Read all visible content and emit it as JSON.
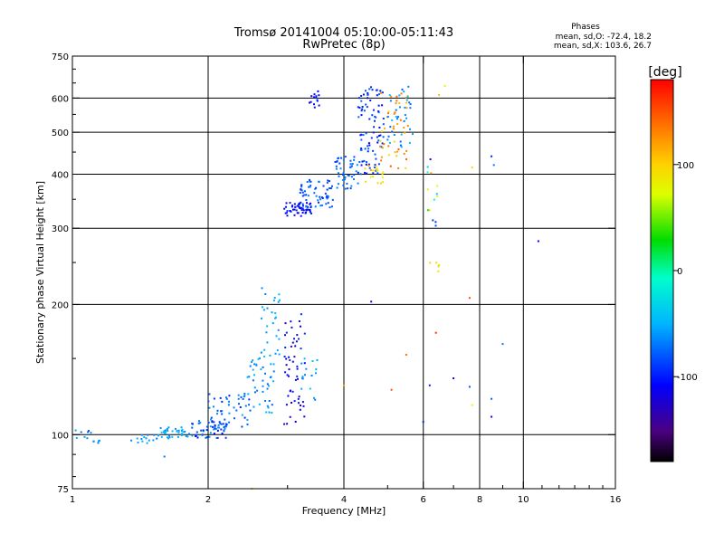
{
  "chart_data": {
    "type": "scatter",
    "title": "Tromsø 20141004 05:10:00-05:11:43",
    "subtitle": "RwPretec (8p)",
    "xlabel": "Frequency [MHz]",
    "ylabel": "Stationary phase Virtual Height [km]",
    "x_scale": "log",
    "y_scale": "log",
    "xlim": [
      1,
      16
    ],
    "ylim": [
      75,
      750
    ],
    "grid": true,
    "x_ticks": [
      "1",
      "2",
      "4",
      "6",
      "8",
      "10",
      "16"
    ],
    "y_ticks": [
      "75",
      "100",
      "200",
      "300",
      "400",
      "500",
      "600",
      "750"
    ],
    "x_grid": [
      2,
      4,
      6,
      8,
      10
    ],
    "y_grid": [
      100,
      200,
      300,
      400,
      500,
      600
    ],
    "stats": {
      "heading": "Phases",
      "line1": "mean, sd,O: -72.4, 18.2",
      "line2": "mean, sd,X: 103.6, 26.7"
    },
    "colorbar": {
      "label": "[deg]",
      "min": -180,
      "max": 180,
      "ticks": [
        "100",
        "0",
        "-100"
      ],
      "tick_values": [
        100,
        0,
        -100
      ]
    },
    "clusters": [
      {
        "f": [
          1.0,
          1.1
        ],
        "h": [
          97,
          103
        ],
        "ph": [
          -90,
          -40
        ],
        "n": 8
      },
      {
        "f": [
          1.1,
          1.15
        ],
        "h": [
          95,
          99
        ],
        "ph": [
          -70,
          -50
        ],
        "n": 5
      },
      {
        "f": [
          1.35,
          1.55
        ],
        "h": [
          95,
          102
        ],
        "ph": [
          -75,
          -45
        ],
        "n": 14
      },
      {
        "f": [
          1.55,
          1.8
        ],
        "h": [
          98,
          104
        ],
        "ph": [
          -65,
          -45
        ],
        "n": 35
      },
      {
        "f": [
          1.8,
          2.2
        ],
        "h": [
          98,
          108
        ],
        "ph": [
          -110,
          -55
        ],
        "n": 55
      },
      {
        "f": [
          2.0,
          2.5
        ],
        "h": [
          104,
          125
        ],
        "ph": [
          -100,
          -50
        ],
        "n": 45
      },
      {
        "f": [
          2.4,
          2.8
        ],
        "h": [
          112,
          150
        ],
        "ph": [
          -80,
          -45
        ],
        "n": 45
      },
      {
        "f": [
          2.6,
          2.9
        ],
        "h": [
          150,
          225
        ],
        "ph": [
          -70,
          -45
        ],
        "n": 30
      },
      {
        "f": [
          2.95,
          3.3
        ],
        "h": [
          105,
          195
        ],
        "ph": [
          -130,
          -90
        ],
        "n": 55
      },
      {
        "f": [
          3.2,
          3.5
        ],
        "h": [
          120,
          150
        ],
        "ph": [
          -70,
          -40
        ],
        "n": 15
      },
      {
        "f": [
          2.95,
          3.4
        ],
        "h": [
          320,
          345
        ],
        "ph": [
          -120,
          -90
        ],
        "n": 55
      },
      {
        "f": [
          3.2,
          3.8
        ],
        "h": [
          335,
          390
        ],
        "ph": [
          -95,
          -65
        ],
        "n": 60
      },
      {
        "f": [
          3.8,
          4.3
        ],
        "h": [
          370,
          440
        ],
        "ph": [
          -90,
          -60
        ],
        "n": 45
      },
      {
        "f": [
          4.3,
          4.9
        ],
        "h": [
          400,
          640
        ],
        "ph": [
          -110,
          -70
        ],
        "n": 90
      },
      {
        "f": [
          4.4,
          4.9
        ],
        "h": [
          380,
          420
        ],
        "ph": [
          70,
          130
        ],
        "n": 18
      },
      {
        "f": [
          4.8,
          5.6
        ],
        "h": [
          410,
          620
        ],
        "ph": [
          90,
          150
        ],
        "n": 45
      },
      {
        "f": [
          5.0,
          5.7
        ],
        "h": [
          460,
          640
        ],
        "ph": [
          -80,
          -40
        ],
        "n": 35
      },
      {
        "f": [
          3.3,
          3.55
        ],
        "h": [
          570,
          630
        ],
        "ph": [
          -115,
          -90
        ],
        "n": 14
      },
      {
        "f": [
          6.1,
          6.5
        ],
        "h": [
          300,
          440
        ],
        "ph": [
          -120,
          120
        ],
        "n": 14
      },
      {
        "f": [
          6.2,
          6.6
        ],
        "h": [
          230,
          250
        ],
        "ph": [
          60,
          110
        ],
        "n": 5
      }
    ],
    "outliers": [
      {
        "f": 10.8,
        "h": 280,
        "ph": -110
      },
      {
        "f": 4.6,
        "h": 203,
        "ph": -110
      },
      {
        "f": 7.6,
        "h": 207,
        "ph": 150
      },
      {
        "f": 6.4,
        "h": 172,
        "ph": 160
      },
      {
        "f": 9.0,
        "h": 162,
        "ph": -70
      },
      {
        "f": 5.5,
        "h": 153,
        "ph": 140
      },
      {
        "f": 7.0,
        "h": 135,
        "ph": -120
      },
      {
        "f": 6.2,
        "h": 130,
        "ph": -100
      },
      {
        "f": 7.6,
        "h": 129,
        "ph": -80
      },
      {
        "f": 5.1,
        "h": 127,
        "ph": 150
      },
      {
        "f": 4.0,
        "h": 130,
        "ph": 120
      },
      {
        "f": 8.5,
        "h": 121,
        "ph": -80
      },
      {
        "f": 7.7,
        "h": 117,
        "ph": 70
      },
      {
        "f": 8.5,
        "h": 110,
        "ph": -110
      },
      {
        "f": 6.0,
        "h": 107,
        "ph": -100
      },
      {
        "f": 8.5,
        "h": 440,
        "ph": -100
      },
      {
        "f": 8.6,
        "h": 420,
        "ph": -70
      },
      {
        "f": 7.7,
        "h": 415,
        "ph": 100
      },
      {
        "f": 6.5,
        "h": 610,
        "ph": 110
      },
      {
        "f": 6.7,
        "h": 640,
        "ph": 70
      },
      {
        "f": 2.5,
        "h": 75,
        "ph": 100
      },
      {
        "f": 1.6,
        "h": 89,
        "ph": -70
      }
    ]
  }
}
